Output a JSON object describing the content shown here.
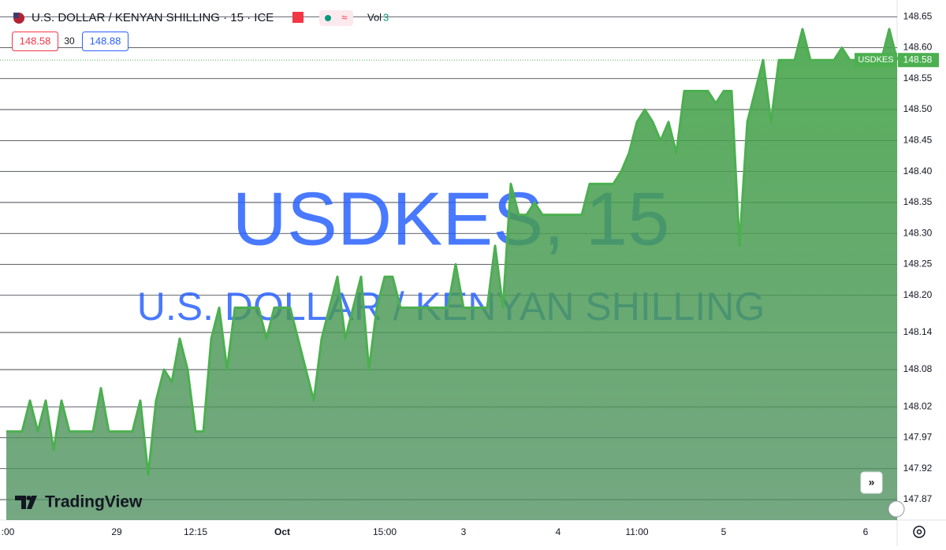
{
  "header": {
    "title": "U.S. DOLLAR / KENYAN SHILLING · 15 · ICE",
    "vol_label": "Vol",
    "vol_value": "3",
    "bid": "148.58",
    "spread": "30",
    "ask": "148.88"
  },
  "chart_data": {
    "type": "area",
    "watermark_title": "USDKES, 15",
    "watermark_subtitle": "U.S. DOLLAR / KENYAN SHILLING",
    "brand": "TradingView",
    "symbol": "USDKES",
    "last_price": 148.58,
    "color": "#4caf50",
    "categories": [
      ":00",
      null,
      null,
      null,
      null,
      null,
      null,
      null,
      null,
      null,
      null,
      null,
      null,
      null,
      "29",
      null,
      null,
      null,
      null,
      null,
      null,
      null,
      null,
      null,
      "12:15",
      null,
      null,
      null,
      null,
      null,
      null,
      null,
      null,
      null,
      null,
      "Oct",
      null,
      null,
      null,
      null,
      null,
      null,
      null,
      null,
      null,
      null,
      null,
      null,
      "15:00",
      null,
      null,
      null,
      null,
      null,
      null,
      null,
      null,
      null,
      "3",
      null,
      null,
      null,
      null,
      null,
      null,
      null,
      null,
      null,
      null,
      null,
      "4",
      null,
      null,
      null,
      null,
      null,
      null,
      null,
      null,
      null,
      "11:00",
      null,
      null,
      null,
      null,
      null,
      null,
      null,
      null,
      null,
      null,
      "5",
      null,
      null,
      null,
      null,
      null,
      null,
      null,
      null,
      null,
      null,
      null,
      null,
      null,
      null,
      null,
      null,
      null,
      "6",
      null,
      null,
      null,
      null
    ],
    "values": [
      147.98,
      147.98,
      147.98,
      148.03,
      147.98,
      148.03,
      147.95,
      148.03,
      147.98,
      147.98,
      147.98,
      147.98,
      148.05,
      147.98,
      147.98,
      147.98,
      147.98,
      148.03,
      147.91,
      148.03,
      148.08,
      148.06,
      148.13,
      148.08,
      147.98,
      147.98,
      148.13,
      148.18,
      148.08,
      148.18,
      148.18,
      148.18,
      148.18,
      148.13,
      148.18,
      148.18,
      148.18,
      148.13,
      148.08,
      148.03,
      148.13,
      148.18,
      148.23,
      148.13,
      148.18,
      148.23,
      148.08,
      148.18,
      148.23,
      148.23,
      148.18,
      148.18,
      148.18,
      148.18,
      148.18,
      148.18,
      148.18,
      148.25,
      148.18,
      148.18,
      148.18,
      148.18,
      148.28,
      148.18,
      148.38,
      148.33,
      148.33,
      148.35,
      148.33,
      148.33,
      148.33,
      148.33,
      148.33,
      148.33,
      148.38,
      148.38,
      148.38,
      148.38,
      148.4,
      148.43,
      148.48,
      148.5,
      148.48,
      148.45,
      148.48,
      148.43,
      148.53,
      148.53,
      148.53,
      148.53,
      148.51,
      148.53,
      148.53,
      148.28,
      148.48,
      148.53,
      148.58,
      148.48,
      148.58,
      148.58,
      148.58,
      148.63,
      148.58,
      148.58,
      148.58,
      148.58,
      148.6,
      148.58,
      148.58,
      148.58,
      148.58,
      148.58,
      148.63,
      148.58
    ],
    "ylim": [
      147.837,
      148.677
    ],
    "yticks": [
      148.65,
      {
        "value": 148.6,
        "label": "148.60"
      },
      148.55,
      {
        "value": 148.5,
        "label": "148.50"
      },
      148.45,
      {
        "value": 148.4,
        "label": "148.40"
      },
      148.35,
      {
        "value": 148.3,
        "label": "148.30"
      },
      148.25,
      {
        "value": 148.2,
        "label": "148.20"
      },
      148.14,
      148.08,
      148.02,
      147.97,
      147.92,
      147.87
    ],
    "grid": true
  }
}
